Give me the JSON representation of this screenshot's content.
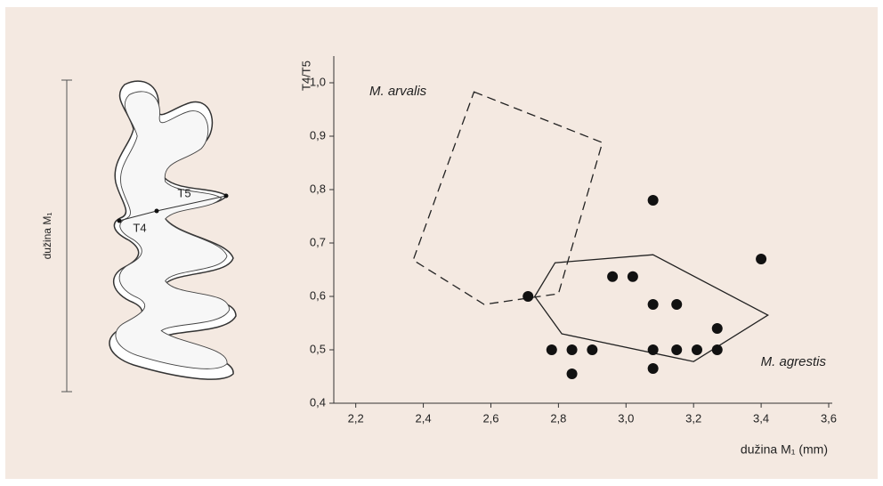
{
  "chart_data": {
    "type": "scatter",
    "xlabel": "dužina M₁ (mm)",
    "ylabel": "T4/T5",
    "xlim": [
      2.135,
      3.6
    ],
    "ylim": [
      0.4,
      1.05
    ],
    "xticks": [
      {
        "value": 2.2,
        "label": "2,2"
      },
      {
        "value": 2.4,
        "label": "2,4"
      },
      {
        "value": 2.6,
        "label": "2,6"
      },
      {
        "value": 2.8,
        "label": "2,8"
      },
      {
        "value": 3.0,
        "label": "3,0"
      },
      {
        "value": 3.2,
        "label": "3,2"
      },
      {
        "value": 3.4,
        "label": "3,4"
      },
      {
        "value": 3.6,
        "label": "3,6"
      }
    ],
    "yticks": [
      {
        "value": 0.4,
        "label": "0,4"
      },
      {
        "value": 0.5,
        "label": "0,5"
      },
      {
        "value": 0.6,
        "label": "0,6"
      },
      {
        "value": 0.7,
        "label": "0,7"
      },
      {
        "value": 0.8,
        "label": "0,8"
      },
      {
        "value": 0.9,
        "label": "0,9"
      },
      {
        "value": 1.0,
        "label": "1,0"
      }
    ],
    "points": {
      "color": "#111111",
      "x": [
        2.71,
        2.78,
        2.84,
        2.84,
        2.9,
        2.96,
        3.02,
        3.08,
        3.08,
        3.08,
        3.08,
        3.15,
        3.15,
        3.21,
        3.27,
        3.27,
        3.4
      ],
      "y": [
        0.6,
        0.5,
        0.5,
        0.455,
        0.5,
        0.637,
        0.637,
        0.78,
        0.585,
        0.5,
        0.465,
        0.585,
        0.5,
        0.5,
        0.54,
        0.5,
        0.67
      ]
    },
    "regions": [
      {
        "name": "M. arvalis",
        "style": "dashed",
        "x": [
          2.55,
          2.93,
          2.8,
          2.58,
          2.37
        ],
        "y": [
          0.983,
          0.888,
          0.605,
          0.585,
          0.668
        ]
      },
      {
        "name": "M. agrestis",
        "style": "solid",
        "x": [
          2.73,
          2.79,
          3.08,
          3.42,
          3.2,
          2.81
        ],
        "y": [
          0.6,
          0.663,
          0.678,
          0.565,
          0.478,
          0.53
        ]
      }
    ]
  },
  "diagram": {
    "length_label": "dužina M₁",
    "cusp_labels": [
      "T5",
      "T4"
    ]
  }
}
